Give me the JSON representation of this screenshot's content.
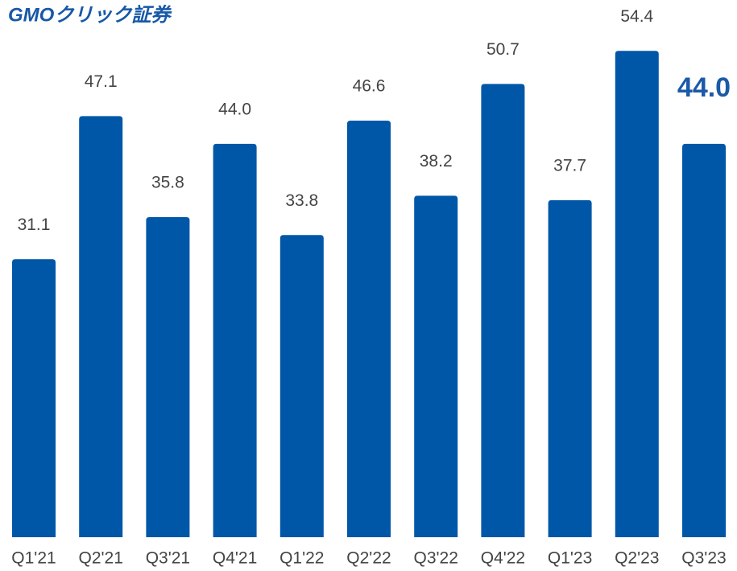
{
  "chart_data": {
    "type": "bar",
    "brand": "GMOクリック証券",
    "categories": [
      "Q1'21",
      "Q2'21",
      "Q3'21",
      "Q4'21",
      "Q1'22",
      "Q2'22",
      "Q3'22",
      "Q4'22",
      "Q1'23",
      "Q2'23",
      "Q3'23"
    ],
    "values": [
      31.1,
      47.1,
      35.8,
      44.0,
      33.8,
      46.6,
      38.2,
      50.7,
      37.7,
      54.4,
      44.0
    ],
    "value_labels": [
      "31.1",
      "47.1",
      "35.8",
      "44.0",
      "33.8",
      "46.6",
      "38.2",
      "50.7",
      "37.7",
      "54.4",
      "44.0"
    ],
    "color": "#0057a8",
    "highlight_color": "#1a5aa8",
    "highlight": 10,
    "ylim": [
      0,
      60
    ],
    "grid": false
  }
}
